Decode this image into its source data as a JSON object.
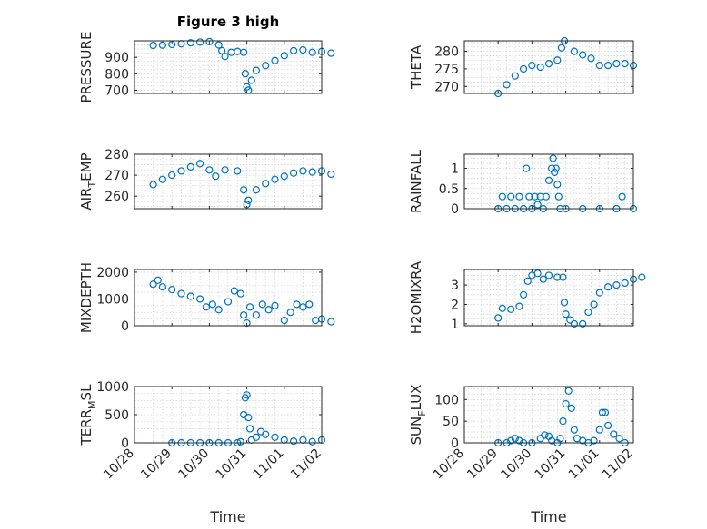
{
  "figure_title": "Figure 3 high",
  "marker_color": "#0072BD",
  "chart_data": [
    {
      "type": "scatter",
      "title": "Figure 3 high",
      "ylabel": "PRESSURE",
      "ylim": [
        680,
        1000
      ],
      "yticks": [
        700,
        800,
        900
      ],
      "xlim": [
        "10/28",
        "11/02"
      ],
      "xticks": [
        "10/28",
        "10/29",
        "10/30",
        "10/31",
        "11/01",
        "11/02"
      ],
      "xlabel": "",
      "grid": true,
      "points": [
        [
          "10/28 12:00",
          972
        ],
        [
          "10/28 18:00",
          974
        ],
        [
          "10/29 00:00",
          978
        ],
        [
          "10/29 06:00",
          982
        ],
        [
          "10/29 12:00",
          988
        ],
        [
          "10/29 18:00",
          992
        ],
        [
          "10/30 00:00",
          995
        ],
        [
          "10/30 06:00",
          975
        ],
        [
          "10/30 08:00",
          940
        ],
        [
          "10/30 10:00",
          905
        ],
        [
          "10/30 14:00",
          930
        ],
        [
          "10/30 18:00",
          935
        ],
        [
          "10/30 22:00",
          930
        ],
        [
          "10/30 23:00",
          800
        ],
        [
          "10/31 00:00",
          720
        ],
        [
          "10/31 01:00",
          700
        ],
        [
          "10/31 03:00",
          760
        ],
        [
          "10/31 06:00",
          820
        ],
        [
          "10/31 12:00",
          850
        ],
        [
          "10/31 18:00",
          880
        ],
        [
          "11/01 00:00",
          910
        ],
        [
          "11/01 06:00",
          940
        ],
        [
          "11/01 12:00",
          945
        ],
        [
          "11/01 18:00",
          930
        ],
        [
          "11/02 00:00",
          935
        ],
        [
          "11/02 06:00",
          925
        ]
      ]
    },
    {
      "type": "scatter",
      "title": "",
      "ylabel": "THETA",
      "ylim": [
        268,
        283
      ],
      "yticks": [
        270,
        275,
        280
      ],
      "xlim": [
        "10/28",
        "11/02"
      ],
      "xticks": [
        "10/28",
        "10/29",
        "10/30",
        "10/31",
        "11/01",
        "11/02"
      ],
      "xlabel": "",
      "grid": true,
      "points": [
        [
          "10/29 00:00",
          268
        ],
        [
          "10/29 06:00",
          270.5
        ],
        [
          "10/29 12:00",
          273
        ],
        [
          "10/29 18:00",
          275
        ],
        [
          "10/30 00:00",
          276
        ],
        [
          "10/30 06:00",
          275.5
        ],
        [
          "10/30 12:00",
          276.5
        ],
        [
          "10/30 18:00",
          277.5
        ],
        [
          "10/30 21:00",
          281
        ],
        [
          "10/30 23:00",
          283
        ],
        [
          "10/31 06:00",
          280
        ],
        [
          "10/31 12:00",
          279
        ],
        [
          "10/31 18:00",
          278
        ],
        [
          "11/01 00:00",
          276
        ],
        [
          "11/01 06:00",
          276
        ],
        [
          "11/01 12:00",
          276.5
        ],
        [
          "11/01 18:00",
          276.5
        ],
        [
          "11/02 00:00",
          276
        ]
      ]
    },
    {
      "type": "scatter",
      "title": "",
      "ylabel": "AIR_TEMP",
      "ylim": [
        254,
        280
      ],
      "yticks": [
        260,
        270,
        280
      ],
      "xlim": [
        "10/28",
        "11/02"
      ],
      "xticks": [
        "10/28",
        "10/29",
        "10/30",
        "10/31",
        "11/01",
        "11/02"
      ],
      "xlabel": "",
      "grid": true,
      "points": [
        [
          "10/28 12:00",
          265.5
        ],
        [
          "10/28 18:00",
          268
        ],
        [
          "10/29 00:00",
          270
        ],
        [
          "10/29 06:00",
          272
        ],
        [
          "10/29 12:00",
          274
        ],
        [
          "10/29 18:00",
          275.5
        ],
        [
          "10/30 00:00",
          272.5
        ],
        [
          "10/30 04:00",
          269.5
        ],
        [
          "10/30 10:00",
          272.5
        ],
        [
          "10/30 18:00",
          272
        ],
        [
          "10/30 22:00",
          263
        ],
        [
          "10/31 00:00",
          256
        ],
        [
          "10/31 01:00",
          258
        ],
        [
          "10/31 06:00",
          263
        ],
        [
          "10/31 12:00",
          266
        ],
        [
          "10/31 18:00",
          268
        ],
        [
          "11/01 00:00",
          269.5
        ],
        [
          "11/01 06:00",
          271
        ],
        [
          "11/01 12:00",
          272
        ],
        [
          "11/01 18:00",
          271.5
        ],
        [
          "11/02 00:00",
          272
        ],
        [
          "11/02 06:00",
          270.5
        ]
      ]
    },
    {
      "type": "scatter",
      "title": "",
      "ylabel": "RAINFALL",
      "ylim": [
        0,
        1.35
      ],
      "yticks": [
        0,
        0.5,
        1
      ],
      "xlim": [
        "10/28",
        "11/02"
      ],
      "xticks": [
        "10/28",
        "10/29",
        "10/30",
        "10/31",
        "11/01",
        "11/02"
      ],
      "xlabel": "",
      "grid": true,
      "points": [
        [
          "10/29 00:00",
          0
        ],
        [
          "10/29 03:00",
          0.3
        ],
        [
          "10/29 06:00",
          0
        ],
        [
          "10/29 09:00",
          0.3
        ],
        [
          "10/29 12:00",
          0
        ],
        [
          "10/29 15:00",
          0.3
        ],
        [
          "10/29 18:00",
          0
        ],
        [
          "10/29 20:00",
          1.0
        ],
        [
          "10/29 22:00",
          0.3
        ],
        [
          "10/30 00:00",
          0
        ],
        [
          "10/30 02:00",
          0.3
        ],
        [
          "10/30 04:00",
          0.1
        ],
        [
          "10/30 06:00",
          0.3
        ],
        [
          "10/30 08:00",
          0
        ],
        [
          "10/30 10:00",
          0.3
        ],
        [
          "10/30 12:00",
          0.7
        ],
        [
          "10/30 14:00",
          1.0
        ],
        [
          "10/30 15:00",
          1.25
        ],
        [
          "10/30 16:00",
          0.9
        ],
        [
          "10/30 17:00",
          1.0
        ],
        [
          "10/30 18:00",
          0.6
        ],
        [
          "10/30 19:00",
          0.3
        ],
        [
          "10/30 20:00",
          0
        ],
        [
          "10/31 00:00",
          0
        ],
        [
          "10/31 12:00",
          0
        ],
        [
          "11/01 00:00",
          0
        ],
        [
          "11/01 12:00",
          0
        ],
        [
          "11/01 16:00",
          0.3
        ],
        [
          "11/02 00:00",
          0
        ]
      ]
    },
    {
      "type": "scatter",
      "title": "",
      "ylabel": "MIXDEPTH",
      "ylim": [
        0,
        2100
      ],
      "yticks": [
        0,
        1000,
        2000
      ],
      "xlim": [
        "10/28",
        "11/02"
      ],
      "xticks": [
        "10/28",
        "10/29",
        "10/30",
        "10/31",
        "11/01",
        "11/02"
      ],
      "xlabel": "",
      "grid": true,
      "points": [
        [
          "10/28 12:00",
          1550
        ],
        [
          "10/28 15:00",
          1700
        ],
        [
          "10/28 18:00",
          1450
        ],
        [
          "10/29 00:00",
          1350
        ],
        [
          "10/29 06:00",
          1200
        ],
        [
          "10/29 12:00",
          1100
        ],
        [
          "10/29 18:00",
          1000
        ],
        [
          "10/29 22:00",
          700
        ],
        [
          "10/30 02:00",
          800
        ],
        [
          "10/30 06:00",
          600
        ],
        [
          "10/30 12:00",
          900
        ],
        [
          "10/30 16:00",
          1300
        ],
        [
          "10/30 20:00",
          1200
        ],
        [
          "10/30 22:00",
          400
        ],
        [
          "10/31 00:00",
          100
        ],
        [
          "10/31 02:00",
          700
        ],
        [
          "10/31 06:00",
          400
        ],
        [
          "10/31 10:00",
          800
        ],
        [
          "10/31 14:00",
          600
        ],
        [
          "10/31 18:00",
          750
        ],
        [
          "11/01 00:00",
          200
        ],
        [
          "11/01 04:00",
          500
        ],
        [
          "11/01 08:00",
          800
        ],
        [
          "11/01 12:00",
          700
        ],
        [
          "11/01 16:00",
          800
        ],
        [
          "11/01 20:00",
          200
        ],
        [
          "11/02 00:00",
          250
        ],
        [
          "11/02 06:00",
          150
        ]
      ]
    },
    {
      "type": "scatter",
      "title": "",
      "ylabel": "H2OMIXRA",
      "ylim": [
        0.9,
        3.8
      ],
      "yticks": [
        1,
        2,
        3
      ],
      "xlim": [
        "10/28",
        "11/02"
      ],
      "xticks": [
        "10/28",
        "10/29",
        "10/30",
        "10/31",
        "11/01",
        "11/02"
      ],
      "xlabel": "",
      "grid": true,
      "points": [
        [
          "10/29 00:00",
          1.3
        ],
        [
          "10/29 03:00",
          1.8
        ],
        [
          "10/29 09:00",
          1.75
        ],
        [
          "10/29 15:00",
          1.9
        ],
        [
          "10/29 18:00",
          2.5
        ],
        [
          "10/29 21:00",
          3.2
        ],
        [
          "10/30 00:00",
          3.5
        ],
        [
          "10/30 04:00",
          3.6
        ],
        [
          "10/30 08:00",
          3.3
        ],
        [
          "10/30 12:00",
          3.5
        ],
        [
          "10/30 18:00",
          3.4
        ],
        [
          "10/30 22:00",
          3.4
        ],
        [
          "10/30 23:00",
          2.1
        ],
        [
          "10/31 00:00",
          1.5
        ],
        [
          "10/31 03:00",
          1.2
        ],
        [
          "10/31 06:00",
          1.0
        ],
        [
          "10/31 12:00",
          1.0
        ],
        [
          "10/31 16:00",
          1.6
        ],
        [
          "10/31 20:00",
          2.0
        ],
        [
          "11/01 00:00",
          2.6
        ],
        [
          "11/01 06:00",
          2.9
        ],
        [
          "11/01 12:00",
          3.0
        ],
        [
          "11/01 18:00",
          3.1
        ],
        [
          "11/02 00:00",
          3.3
        ],
        [
          "11/02 06:00",
          3.4
        ]
      ]
    },
    {
      "type": "scatter",
      "title": "",
      "ylabel": "TERR_MSL",
      "ylim": [
        0,
        1000
      ],
      "yticks": [
        0,
        500,
        1000
      ],
      "xlim": [
        "10/28",
        "11/02"
      ],
      "xticks": [
        "10/28",
        "10/29",
        "10/30",
        "10/31",
        "11/01",
        "11/02"
      ],
      "xlabel": "Time",
      "grid": true,
      "points": [
        [
          "10/29 00:00",
          0
        ],
        [
          "10/29 06:00",
          0
        ],
        [
          "10/29 12:00",
          0
        ],
        [
          "10/29 18:00",
          0
        ],
        [
          "10/30 00:00",
          0
        ],
        [
          "10/30 06:00",
          0
        ],
        [
          "10/30 12:00",
          0
        ],
        [
          "10/30 18:00",
          0
        ],
        [
          "10/30 20:00",
          20
        ],
        [
          "10/30 22:00",
          500
        ],
        [
          "10/30 23:00",
          800
        ],
        [
          "10/31 00:00",
          850
        ],
        [
          "10/31 01:00",
          450
        ],
        [
          "10/31 02:00",
          250
        ],
        [
          "10/31 03:00",
          50
        ],
        [
          "10/31 06:00",
          100
        ],
        [
          "10/31 09:00",
          200
        ],
        [
          "10/31 12:00",
          150
        ],
        [
          "10/31 18:00",
          100
        ],
        [
          "11/01 00:00",
          50
        ],
        [
          "11/01 06:00",
          30
        ],
        [
          "11/01 12:00",
          50
        ],
        [
          "11/01 18:00",
          20
        ],
        [
          "11/02 00:00",
          50
        ]
      ]
    },
    {
      "type": "scatter",
      "title": "",
      "ylabel": "SUN_FLUX",
      "ylim": [
        0,
        130
      ],
      "yticks": [
        0,
        50,
        100
      ],
      "xlim": [
        "10/28",
        "11/02"
      ],
      "xticks": [
        "10/28",
        "10/29",
        "10/30",
        "10/31",
        "11/01",
        "11/02"
      ],
      "xlabel": "Time",
      "grid": true,
      "points": [
        [
          "10/29 00:00",
          0
        ],
        [
          "10/29 06:00",
          0
        ],
        [
          "10/29 09:00",
          5
        ],
        [
          "10/29 12:00",
          10
        ],
        [
          "10/29 15:00",
          5
        ],
        [
          "10/29 18:00",
          0
        ],
        [
          "10/30 00:00",
          0
        ],
        [
          "10/30 06:00",
          10
        ],
        [
          "10/30 09:00",
          18
        ],
        [
          "10/30 12:00",
          15
        ],
        [
          "10/30 14:00",
          5
        ],
        [
          "10/30 18:00",
          0
        ],
        [
          "10/30 20:00",
          10
        ],
        [
          "10/30 22:00",
          50
        ],
        [
          "10/31 00:00",
          90
        ],
        [
          "10/31 02:00",
          120
        ],
        [
          "10/31 04:00",
          80
        ],
        [
          "10/31 06:00",
          30
        ],
        [
          "10/31 08:00",
          10
        ],
        [
          "10/31 12:00",
          5
        ],
        [
          "10/31 16:00",
          0
        ],
        [
          "10/31 20:00",
          5
        ],
        [
          "11/01 00:00",
          30
        ],
        [
          "11/01 02:00",
          70
        ],
        [
          "11/01 04:00",
          70
        ],
        [
          "11/01 06:00",
          40
        ],
        [
          "11/01 10:00",
          20
        ],
        [
          "11/01 14:00",
          10
        ],
        [
          "11/01 18:00",
          0
        ]
      ]
    }
  ]
}
